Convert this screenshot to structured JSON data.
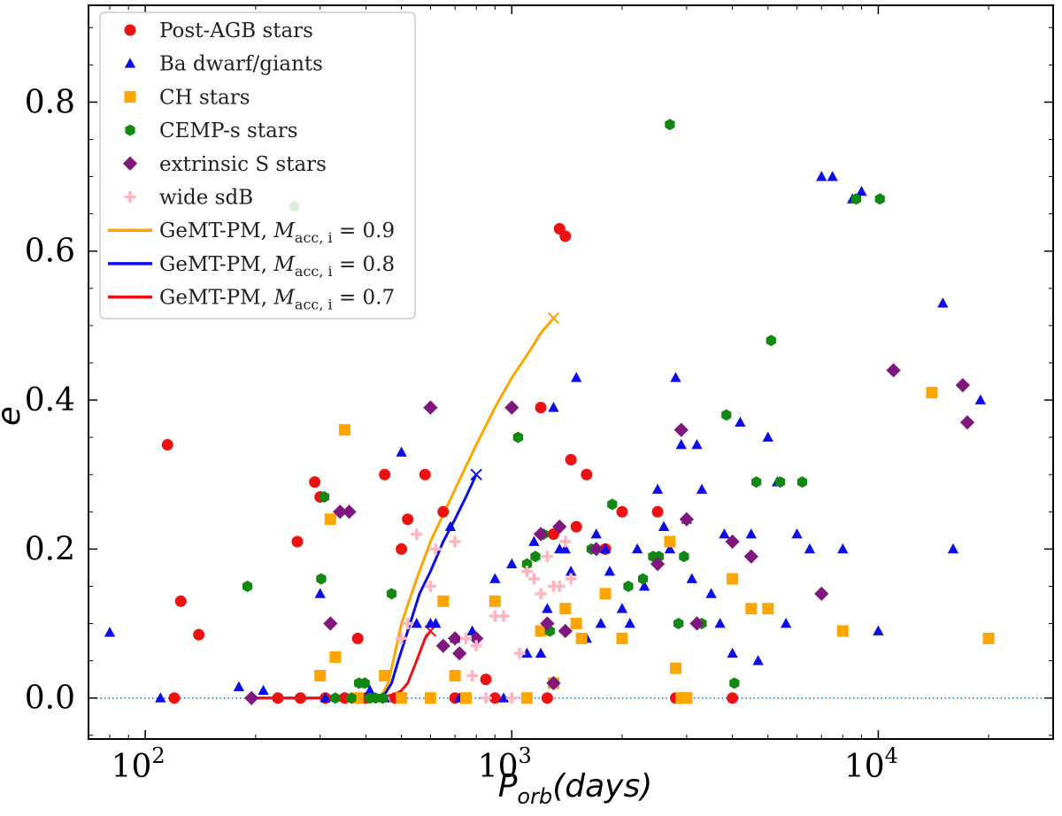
{
  "chart_data": {
    "type": "scatter",
    "xlabel": "P_orb(days)",
    "xlabel_main": "P",
    "xlabel_sub": "orb",
    "xlabel_rest": "(days)",
    "ylabel": "e",
    "xscale": "log",
    "xlim": [
      70,
      30000
    ],
    "ylim": [
      -0.055,
      0.93
    ],
    "x_ticks": [
      {
        "value": 100,
        "base": "10",
        "exp": "2"
      },
      {
        "value": 1000,
        "base": "10",
        "exp": "3"
      },
      {
        "value": 10000,
        "base": "10",
        "exp": "4"
      }
    ],
    "y_ticks": [
      {
        "value": 0.0,
        "label": "0.0"
      },
      {
        "value": 0.2,
        "label": "0.2"
      },
      {
        "value": 0.4,
        "label": "0.4"
      },
      {
        "value": 0.6,
        "label": "0.6"
      },
      {
        "value": 0.8,
        "label": "0.8"
      }
    ],
    "reference_line": {
      "y": 0.0,
      "style": "dotted",
      "color": "#1f77b4"
    },
    "legend_position": "upper-left",
    "series": [
      {
        "name": "Post-AGB stars",
        "marker": "circle",
        "color": "#ee1111",
        "x": [
          115,
          120,
          125,
          140,
          230,
          260,
          265,
          290,
          300,
          310,
          350,
          380,
          400,
          450,
          480,
          500,
          520,
          580,
          600,
          650,
          700,
          850,
          900,
          1100,
          1200,
          1250,
          1300,
          1350,
          1400,
          1450,
          1500,
          1600,
          1800,
          1800,
          2000,
          2500,
          2800,
          3000,
          4000
        ],
        "y": [
          0.34,
          0.0,
          0.13,
          0.085,
          0.0,
          0.21,
          0.0,
          0.29,
          0.27,
          0.0,
          0.0,
          0.08,
          0.0,
          0.3,
          0.0,
          0.2,
          0.24,
          0.3,
          0.0,
          0.25,
          0.0,
          0.025,
          0.0,
          0.0,
          0.39,
          0.0,
          0.22,
          0.63,
          0.62,
          0.32,
          0.23,
          0.3,
          0.2,
          0.2,
          0.25,
          0.25,
          0.0,
          0.0,
          0.0
        ]
      },
      {
        "name": "Ba dwarf/giants",
        "marker": "triangle",
        "color": "#0d0de8",
        "x": [
          80,
          110,
          180,
          210,
          300,
          310,
          380,
          400,
          410,
          420,
          450,
          500,
          550,
          600,
          620,
          680,
          700,
          720,
          780,
          900,
          950,
          1000,
          1100,
          1150,
          1200,
          1250,
          1300,
          1350,
          1400,
          1450,
          1500,
          1600,
          1700,
          1750,
          1800,
          1850,
          2000,
          2100,
          2200,
          2300,
          2500,
          2600,
          2700,
          2800,
          2900,
          3000,
          3100,
          3200,
          3300,
          3500,
          3700,
          3800,
          4000,
          4200,
          4500,
          4700,
          5000,
          5300,
          5600,
          6000,
          6500,
          7000,
          7500,
          8000,
          8500,
          9000,
          10000,
          15000,
          16000,
          19000
        ],
        "y": [
          0.088,
          0.0,
          0.015,
          0.01,
          0.14,
          0.0,
          0.0,
          0.02,
          0.01,
          0.0,
          0.0,
          0.33,
          0.1,
          0.1,
          0.1,
          0.23,
          0.08,
          0.0,
          0.09,
          0.16,
          0.0,
          0.18,
          0.06,
          0.21,
          0.06,
          0.12,
          0.39,
          0.2,
          0.2,
          0.17,
          0.43,
          0.08,
          0.22,
          0.1,
          0.2,
          0.17,
          0.12,
          0.1,
          0.2,
          0.15,
          0.28,
          0.23,
          0.2,
          0.43,
          0.34,
          0.24,
          0.16,
          0.34,
          0.28,
          0.14,
          0.1,
          0.22,
          0.06,
          0.37,
          0.22,
          0.05,
          0.35,
          0.29,
          0.1,
          0.22,
          0.2,
          0.7,
          0.7,
          0.2,
          0.67,
          0.68,
          0.09,
          0.53,
          0.2,
          0.4
        ]
      },
      {
        "name": "CH stars",
        "marker": "square",
        "color": "#ffa500",
        "x": [
          300,
          320,
          330,
          350,
          380,
          450,
          500,
          600,
          650,
          700,
          750,
          900,
          1100,
          1200,
          1300,
          1400,
          1500,
          1550,
          1800,
          2000,
          2700,
          2800,
          2900,
          3000,
          4000,
          4500,
          5000,
          8000,
          14000,
          20000
        ],
        "y": [
          0.03,
          0.24,
          0.055,
          0.36,
          0.0,
          0.03,
          0.0,
          0.0,
          0.13,
          0.03,
          0.0,
          0.13,
          0.0,
          0.09,
          0.02,
          0.12,
          0.1,
          0.08,
          0.14,
          0.08,
          0.21,
          0.04,
          0.0,
          0.0,
          0.16,
          0.12,
          0.12,
          0.09,
          0.41,
          0.08
        ]
      },
      {
        "name": "CEMP-s stars",
        "marker": "hexagon",
        "color": "#118811",
        "x": [
          190,
          260,
          300,
          310,
          330,
          380,
          400,
          410,
          420,
          440,
          460,
          470,
          1000,
          1050,
          1100,
          1150,
          1200,
          1400,
          1500,
          1700,
          1800,
          1900,
          2000,
          2200,
          2500,
          2800,
          3000,
          3500,
          4000,
          4500,
          4700,
          5000,
          6000,
          9000,
          10000
        ],
        "y": [
          0.15,
          0.66,
          0.16,
          0.27,
          0.0,
          0.0,
          0.02,
          0.02,
          0.0,
          0.0,
          0.0,
          0.14,
          0.35,
          0.18,
          0.19,
          0.22,
          0.09,
          0.2,
          0.26,
          0.15,
          0.16,
          0.19,
          0.19,
          0.77,
          0.1,
          0.19,
          0.1,
          0.38,
          0.02,
          0.29,
          0.48,
          0.29,
          0.29,
          0.67,
          0.67
        ],
        "x2": [
          190,
          255,
          302,
          308,
          330,
          365,
          383,
          397,
          410,
          425,
          445,
          470,
          1040,
          1100,
          1160,
          1220,
          1270,
          1650,
          1880,
          2080,
          2280,
          2430,
          2520,
          2700,
          2850,
          2950,
          3300,
          3850,
          4050,
          4650,
          5100,
          5400,
          6200,
          8700,
          10100
        ]
      },
      {
        "name": "extrinsic S stars",
        "marker": "diamond",
        "color": "#7f177f",
        "x": [
          195,
          320,
          340,
          360,
          600,
          650,
          700,
          720,
          800,
          1000,
          1200,
          1250,
          1300,
          1350,
          1400,
          1700,
          2500,
          2900,
          3000,
          3200,
          4000,
          4500,
          7000,
          11000,
          17000,
          17500
        ],
        "y": [
          0.0,
          0.1,
          0.25,
          0.25,
          0.39,
          0.07,
          0.08,
          0.06,
          0.08,
          0.39,
          0.22,
          0.1,
          0.02,
          0.23,
          0.09,
          0.2,
          0.18,
          0.36,
          0.24,
          0.1,
          0.21,
          0.19,
          0.14,
          0.44,
          0.42,
          0.37
        ]
      },
      {
        "name": "wide sdB",
        "marker": "plus",
        "color": "#ffb6c1",
        "x": [
          500,
          520,
          550,
          600,
          620,
          700,
          750,
          780,
          800,
          850,
          900,
          950,
          1000,
          1050,
          1100,
          1150,
          1200,
          1250,
          1300,
          1350,
          1400,
          1450
        ],
        "y": [
          0.08,
          0.1,
          0.22,
          0.15,
          0.2,
          0.21,
          0.08,
          0.03,
          0.07,
          0.0,
          0.11,
          0.11,
          0.0,
          0.06,
          0.17,
          0.16,
          0.14,
          0.19,
          0.15,
          0.15,
          0.21,
          0.16
        ]
      },
      {
        "name": "GeMT-PM, M_acc,i = 0.9",
        "label_main": "GeMT-PM, ",
        "label_sym": "M",
        "label_sub": "acc, i",
        "label_val": " = 0.9",
        "marker": "line",
        "color": "#ffa500",
        "x": [
          200,
          300,
          400,
          440,
          460,
          480,
          500,
          550,
          600,
          700,
          800,
          900,
          1000,
          1100,
          1200,
          1300
        ],
        "y": [
          0.0,
          0.0,
          0.0,
          0.002,
          0.02,
          0.06,
          0.1,
          0.16,
          0.21,
          0.28,
          0.34,
          0.39,
          0.43,
          0.46,
          0.49,
          0.51
        ]
      },
      {
        "name": "GeMT-PM, M_acc,i = 0.8",
        "label_main": "GeMT-PM, ",
        "label_sym": "M",
        "label_sub": "acc, i",
        "label_val": " = 0.8",
        "marker": "line",
        "color": "#0d0de8",
        "x": [
          200,
          300,
          400,
          450,
          470,
          490,
          520,
          560,
          600,
          650,
          700,
          750,
          800
        ],
        "y": [
          0.0,
          0.0,
          0.0,
          0.005,
          0.02,
          0.05,
          0.09,
          0.14,
          0.17,
          0.21,
          0.24,
          0.27,
          0.3
        ]
      },
      {
        "name": "GeMT-PM, M_acc,i = 0.7",
        "label_main": "GeMT-PM, ",
        "label_sym": "M",
        "label_sub": "acc, i",
        "label_val": " = 0.7",
        "marker": "line",
        "color": "#ee1111",
        "x": [
          200,
          300,
          400,
          450,
          480,
          500,
          520,
          540,
          560,
          580,
          600
        ],
        "y": [
          0.0,
          0.0,
          0.0,
          0.002,
          0.005,
          0.01,
          0.02,
          0.04,
          0.06,
          0.08,
          0.09
        ]
      }
    ]
  }
}
